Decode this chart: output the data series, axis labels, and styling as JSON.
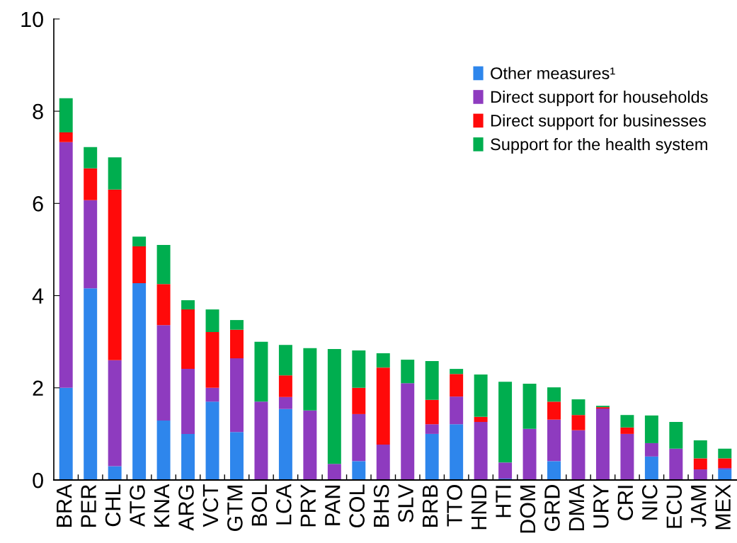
{
  "chart_data": {
    "type": "bar",
    "stacked": true,
    "categories": [
      "BRA",
      "PER",
      "CHL",
      "ATG",
      "KNA",
      "ARG",
      "VCT",
      "GTM",
      "BOL",
      "LCA",
      "PRY",
      "PAN",
      "COL",
      "BHS",
      "SLV",
      "BRB",
      "TTO",
      "HND",
      "HTI",
      "DOM",
      "GRD",
      "DMA",
      "URY",
      "CRI",
      "NIC",
      "ECU",
      "JAM",
      "MEX"
    ],
    "series": [
      {
        "name": "Other measures¹",
        "color": "#2e86ec",
        "values": [
          2.0,
          4.16,
          0.3,
          4.27,
          1.29,
          1.0,
          1.7,
          1.04,
          0,
          1.54,
          0,
          0,
          0.41,
          0,
          0,
          1.0,
          1.21,
          0,
          0.03,
          0,
          0.41,
          0,
          0,
          0,
          0.51,
          0,
          0,
          0.23
        ]
      },
      {
        "name": "Direct support for households",
        "color": "#8e3bbf",
        "values": [
          5.33,
          1.91,
          2.3,
          0,
          2.07,
          1.41,
          0.3,
          1.6,
          1.7,
          0.26,
          1.51,
          0.35,
          1.02,
          0.77,
          2.1,
          0.21,
          0.6,
          1.26,
          0.35,
          1.11,
          0.9,
          1.08,
          1.55,
          1.0,
          0.29,
          0.68,
          0.23,
          0.03
        ]
      },
      {
        "name": "Direct support for businesses",
        "color": "#ff0a0a",
        "values": [
          0.21,
          0.69,
          3.7,
          0.8,
          0.89,
          1.29,
          1.21,
          0.62,
          0,
          0.47,
          0,
          0,
          0.57,
          1.67,
          0,
          0.53,
          0.49,
          0.11,
          0,
          0,
          0.39,
          0.33,
          0.03,
          0.14,
          0,
          0,
          0.24,
          0.21
        ]
      },
      {
        "name": "Support for the health system",
        "color": "#00ae4f",
        "values": [
          0.74,
          0.46,
          0.7,
          0.21,
          0.85,
          0.2,
          0.49,
          0.21,
          1.3,
          0.66,
          1.35,
          2.49,
          0.81,
          0.31,
          0.51,
          0.84,
          0.11,
          0.92,
          1.75,
          0.98,
          0.31,
          0.34,
          0.03,
          0.27,
          0.6,
          0.58,
          0.39,
          0.21
        ]
      }
    ],
    "ylim": [
      0,
      10
    ],
    "yticks": [
      0,
      2,
      4,
      6,
      8,
      10
    ],
    "grid": false,
    "legend": "top right"
  }
}
